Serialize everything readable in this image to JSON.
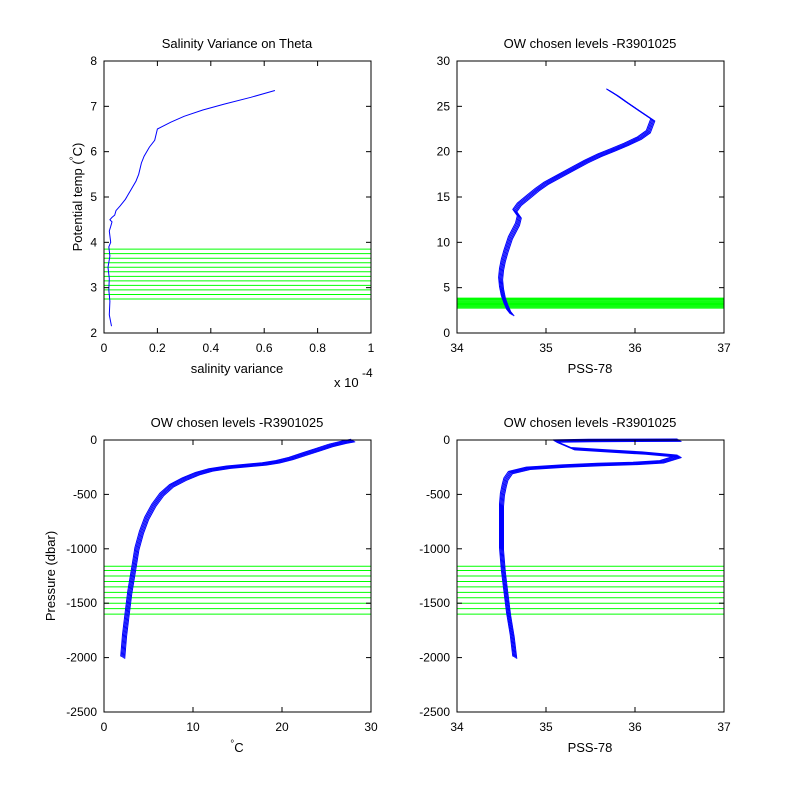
{
  "chart_data": [
    {
      "type": "line",
      "title": "Salinity Variance on Theta",
      "xlabel": "salinity variance",
      "ylabel": "Potential temp (°C)",
      "ylabel_main": "Potential temp (",
      "ylabel_degree": "°",
      "ylabel_unit": "C)",
      "xlim": [
        0,
        1
      ],
      "ylim": [
        2,
        8
      ],
      "x_exponent_base": "x 10",
      "x_exponent_power": "-4",
      "xticks": [
        0,
        0.2,
        0.4,
        0.6,
        0.8,
        1
      ],
      "xtick_labels": [
        "0",
        "0.2",
        "0.4",
        "0.6",
        "0.8",
        "1"
      ],
      "yticks": [
        2,
        3,
        4,
        5,
        6,
        7,
        8
      ],
      "ytick_labels": [
        "2",
        "3",
        "4",
        "5",
        "6",
        "7",
        "8"
      ],
      "x_scale_multiplier": 0.0001,
      "series": [
        {
          "color": "#0000ff",
          "x": [
            0.028,
            0.02,
            0.022,
            0.018,
            0.02,
            0.015,
            0.022,
            0.018,
            0.025,
            0.02,
            0.025,
            0.03,
            0.022,
            0.03,
            0.04,
            0.045,
            0.06,
            0.08,
            0.1,
            0.12,
            0.13,
            0.14,
            0.15,
            0.17,
            0.19,
            0.2,
            0.25,
            0.3,
            0.37,
            0.45,
            0.55,
            0.64
          ],
          "y": [
            2.15,
            2.4,
            2.7,
            2.95,
            3.2,
            3.45,
            3.7,
            3.9,
            4.0,
            4.25,
            4.35,
            4.45,
            4.5,
            4.55,
            4.6,
            4.7,
            4.8,
            4.95,
            5.15,
            5.35,
            5.5,
            5.75,
            5.9,
            6.1,
            6.25,
            6.5,
            6.65,
            6.78,
            6.92,
            7.05,
            7.2,
            7.35
          ]
        }
      ],
      "hlines": {
        "color": "#00ff00",
        "values": [
          2.75,
          2.85,
          2.95,
          3.05,
          3.15,
          3.25,
          3.35,
          3.45,
          3.55,
          3.65,
          3.75,
          3.85
        ]
      }
    },
    {
      "type": "line",
      "title": "OW chosen levels -R3901025",
      "xlabel": "PSS-78",
      "ylabel": "",
      "xlim": [
        34,
        37
      ],
      "ylim": [
        0,
        30
      ],
      "xticks": [
        34,
        35,
        36,
        37
      ],
      "xtick_labels": [
        "34",
        "35",
        "36",
        "37"
      ],
      "yticks": [
        0,
        5,
        10,
        15,
        20,
        25,
        30
      ],
      "ytick_labels": [
        "0",
        "5",
        "10",
        "15",
        "20",
        "25",
        "30"
      ],
      "series": [
        {
          "color": "#0000ff",
          "note_many_profiles": true,
          "x": [
            34.62,
            34.58,
            34.55,
            34.52,
            34.5,
            34.49,
            34.5,
            34.52,
            34.55,
            34.6,
            34.68,
            34.7,
            34.65,
            34.7,
            34.8,
            34.9,
            35.0,
            35.15,
            35.3,
            35.45,
            35.6,
            35.75,
            35.9,
            36.05,
            36.15,
            36.2,
            36.05,
            35.9,
            35.8,
            35.7
          ],
          "y": [
            2.0,
            2.5,
            3.2,
            4.0,
            5.0,
            6.0,
            7.0,
            8.0,
            9.0,
            10.5,
            12.0,
            12.8,
            13.5,
            14.2,
            15.0,
            15.8,
            16.5,
            17.3,
            18.1,
            18.9,
            19.6,
            20.2,
            20.8,
            21.5,
            22.2,
            23.5,
            24.5,
            25.5,
            26.2,
            26.8
          ]
        }
      ],
      "hlines": {
        "color": "#00ff00",
        "values": [
          2.75,
          2.85,
          2.95,
          3.05,
          3.15,
          3.25,
          3.35,
          3.45,
          3.55,
          3.65,
          3.75,
          3.85
        ]
      }
    },
    {
      "type": "line",
      "title": "OW chosen levels -R3901025",
      "xlabel": "°C",
      "xlabel_degree": "°",
      "xlabel_unit": "C",
      "ylabel": "Pressure (dbar)",
      "xlim": [
        0,
        30
      ],
      "ylim": [
        -2500,
        0
      ],
      "xticks": [
        0,
        10,
        20,
        30
      ],
      "xtick_labels": [
        "0",
        "10",
        "20",
        "30"
      ],
      "yticks": [
        -2500,
        -2000,
        -1500,
        -1000,
        -500,
        0
      ],
      "ytick_labels": [
        "-2500",
        "-2000",
        "-1500",
        "-1000",
        "-500",
        "0"
      ],
      "series": [
        {
          "color": "#0000ff",
          "note_many_profiles": true,
          "x": [
            2.1,
            2.3,
            2.6,
            2.9,
            3.3,
            3.7,
            4.2,
            4.8,
            5.6,
            6.5,
            7.6,
            9.0,
            10.5,
            12.0,
            14.0,
            16.0,
            18.0,
            19.5,
            21.0,
            22.5,
            24.0,
            25.5,
            27.0,
            28.0
          ],
          "y": [
            -2000,
            -1800,
            -1600,
            -1400,
            -1200,
            -1000,
            -850,
            -720,
            -600,
            -500,
            -420,
            -360,
            -310,
            -275,
            -250,
            -235,
            -220,
            -200,
            -170,
            -130,
            -90,
            -50,
            -20,
            -5
          ]
        }
      ],
      "hlines": {
        "color": "#00ff00",
        "values": [
          -1160,
          -1200,
          -1250,
          -1300,
          -1350,
          -1400,
          -1450,
          -1500,
          -1550,
          -1600
        ]
      }
    },
    {
      "type": "line",
      "title": "OW chosen levels -R3901025",
      "xlabel": "PSS-78",
      "ylabel": "",
      "xlim": [
        34,
        37
      ],
      "ylim": [
        -2500,
        0
      ],
      "xticks": [
        34,
        35,
        36,
        37
      ],
      "xtick_labels": [
        "34",
        "35",
        "36",
        "37"
      ],
      "yticks": [
        -2500,
        -2000,
        -1500,
        -1000,
        -500,
        0
      ],
      "ytick_labels": [
        "-2500",
        "-2000",
        "-1500",
        "-1000",
        "-500",
        "0"
      ],
      "series": [
        {
          "color": "#0000ff",
          "note_many_profiles": true,
          "x": [
            34.65,
            34.62,
            34.58,
            34.55,
            34.52,
            34.5,
            34.5,
            34.5,
            34.51,
            34.53,
            34.55,
            34.6,
            34.8,
            35.2,
            35.6,
            36.0,
            36.3,
            36.5,
            36.1,
            35.7,
            35.3,
            35.1,
            35.5,
            36.0,
            36.5
          ],
          "y": [
            -2000,
            -1800,
            -1600,
            -1400,
            -1200,
            -1000,
            -800,
            -600,
            -500,
            -420,
            -360,
            -300,
            -260,
            -240,
            -225,
            -215,
            -200,
            -150,
            -120,
            -100,
            -80,
            -10,
            -5,
            -3,
            -2
          ]
        }
      ],
      "hlines": {
        "color": "#00ff00",
        "values": [
          -1160,
          -1200,
          -1250,
          -1300,
          -1350,
          -1400,
          -1450,
          -1500,
          -1550,
          -1600
        ]
      }
    }
  ]
}
